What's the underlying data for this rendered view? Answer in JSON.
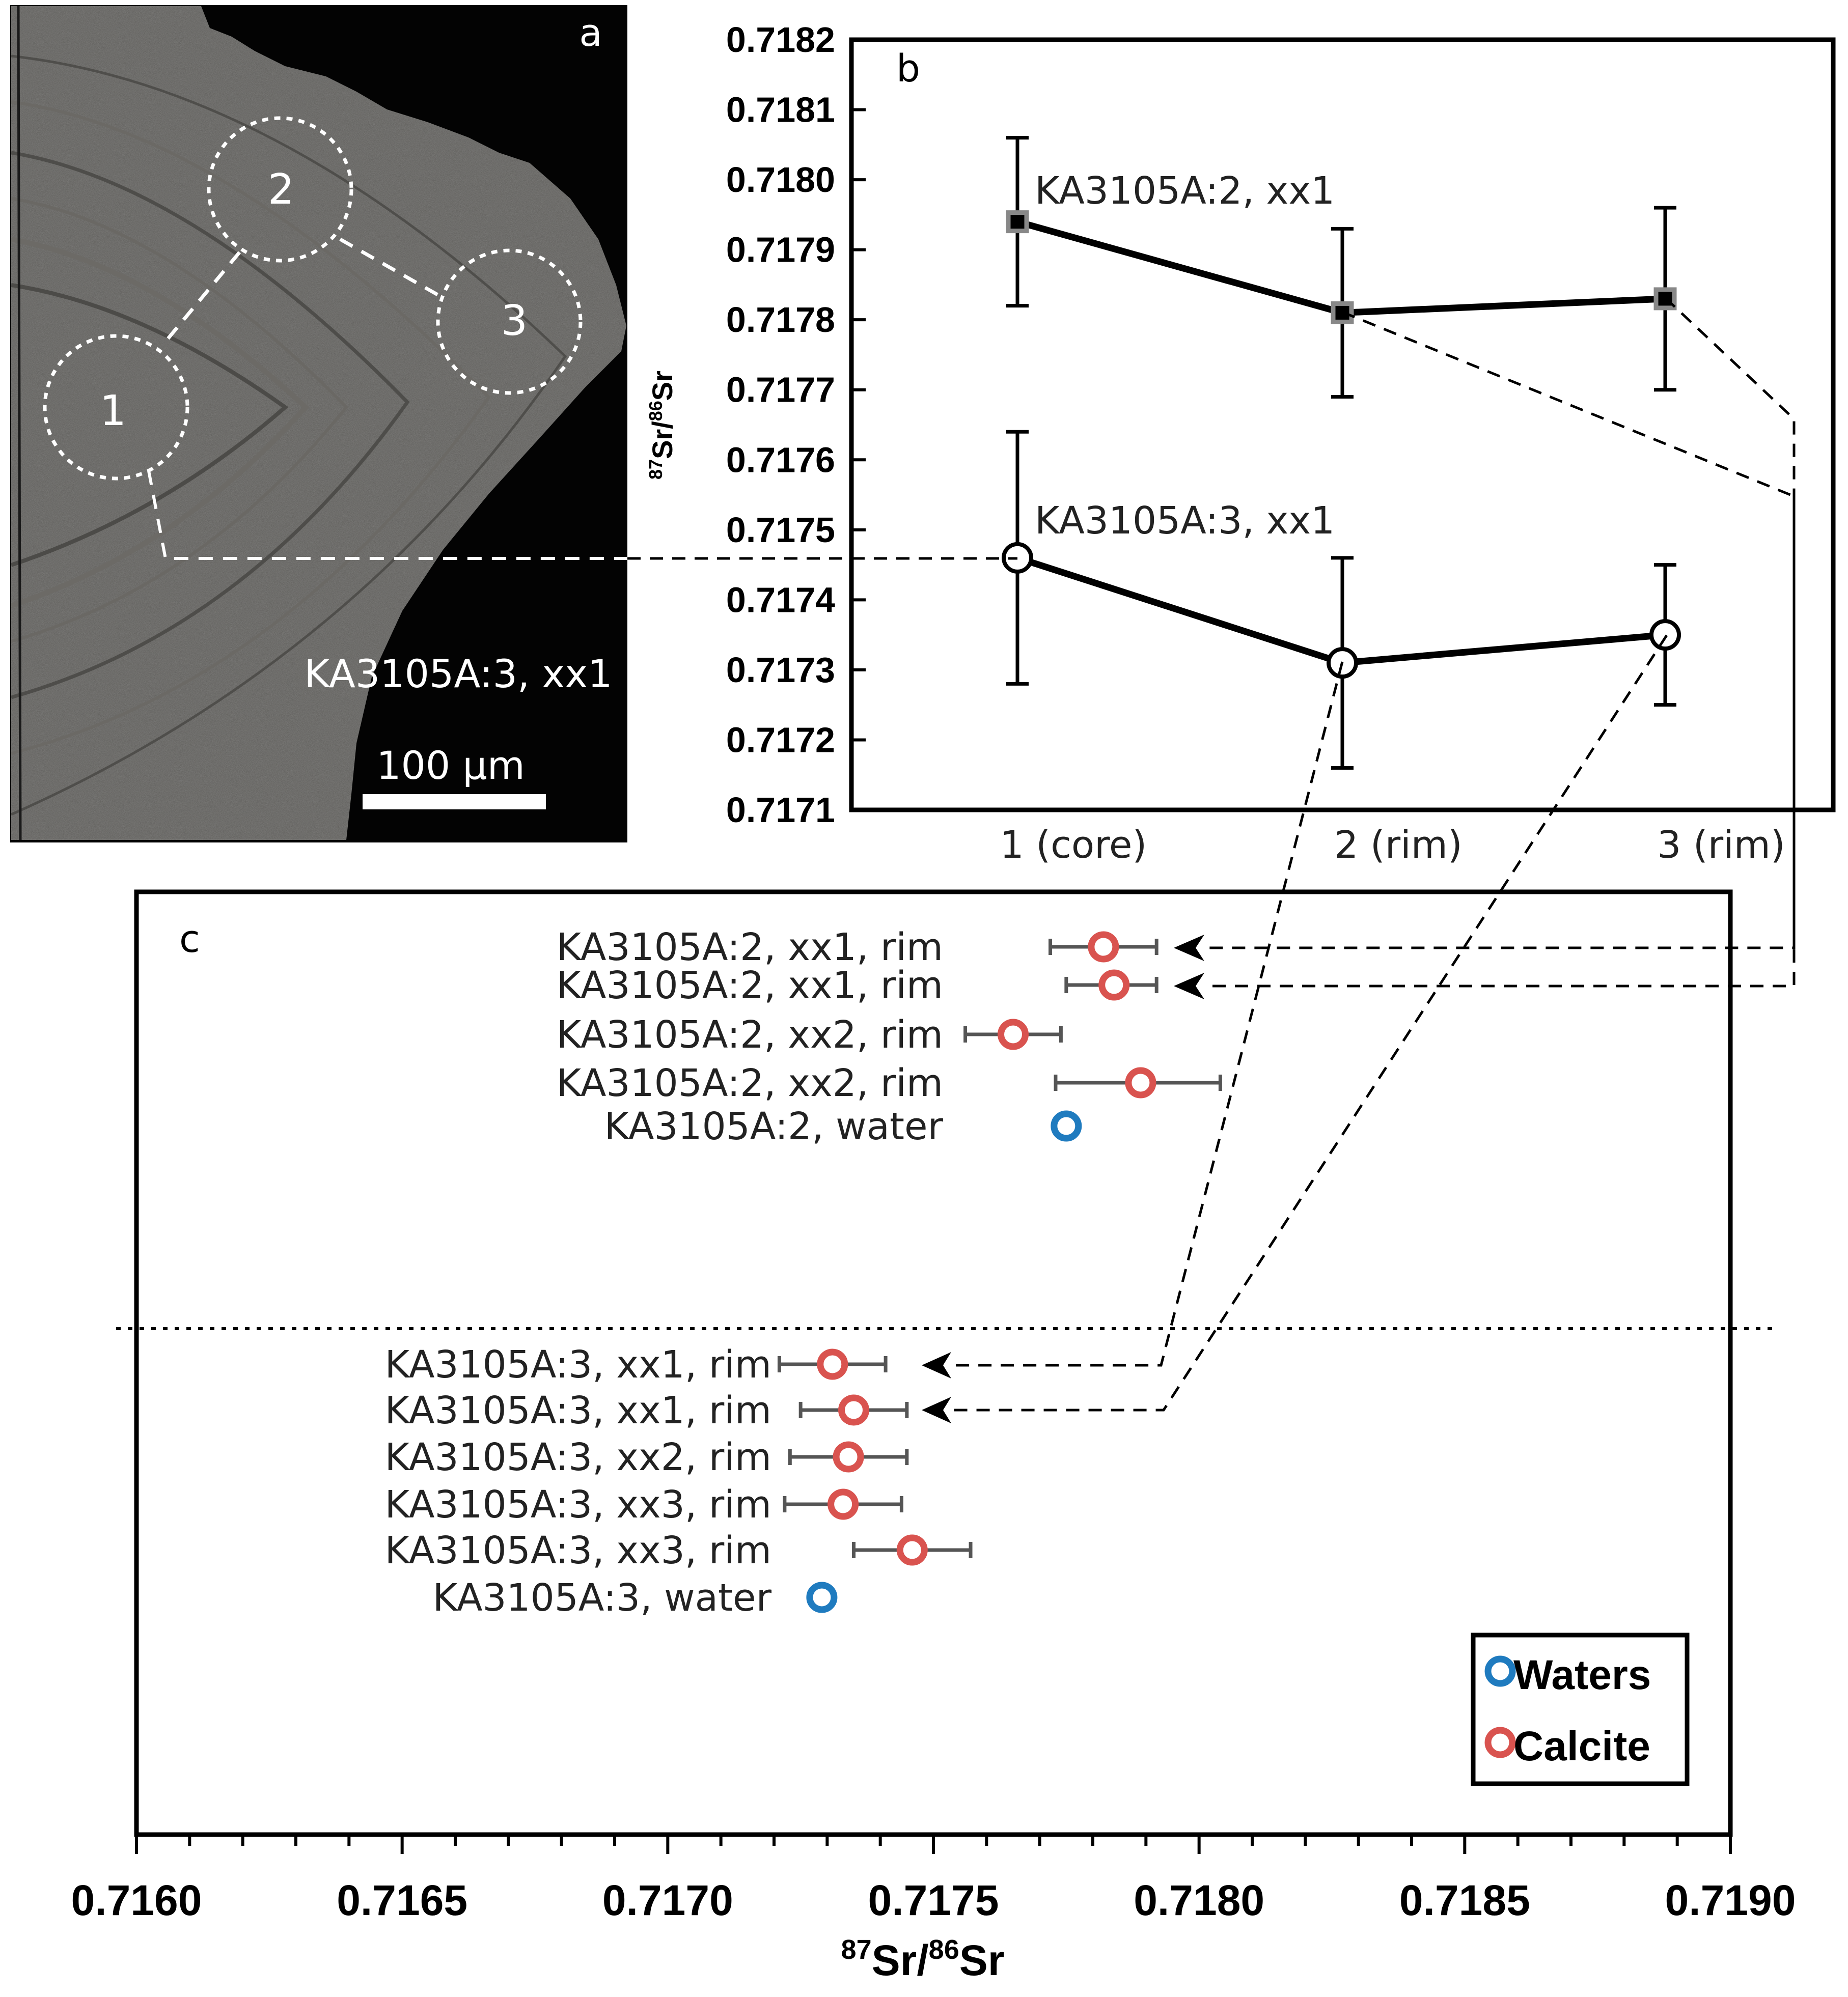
{
  "panel_a": {
    "letter": "a",
    "caption": "KA3105A:3, xx1",
    "scale_bar_label": "100 µm",
    "spots": [
      "1",
      "2",
      "3"
    ]
  },
  "chart_data": [
    {
      "panel": "b",
      "type": "line",
      "ylabel_sup1": "87",
      "ylabel_base1": "Sr/",
      "ylabel_sup2": "86",
      "ylabel_base2": "Sr",
      "ylim": [
        0.7171,
        0.7182
      ],
      "yticks": [
        "0.7171",
        "0.7172",
        "0.7173",
        "0.7174",
        "0.7175",
        "0.7176",
        "0.7177",
        "0.7178",
        "0.7179",
        "0.7180",
        "0.7181",
        "0.7182"
      ],
      "categories": [
        "1 (core)",
        "2 (rim)",
        "3 (rim)"
      ],
      "series": [
        {
          "name": "KA3105A:2, xx1",
          "marker": "square",
          "values": [
            0.71794,
            0.71781,
            0.71783
          ],
          "err_lo": [
            0.71782,
            0.71769,
            0.7177
          ],
          "err_hi": [
            0.71806,
            0.71793,
            0.71796
          ]
        },
        {
          "name": "KA3105A:3, xx1",
          "marker": "circle",
          "values": [
            0.71746,
            0.71731,
            0.71735
          ],
          "err_lo": [
            0.71728,
            0.71716,
            0.71725
          ],
          "err_hi": [
            0.71764,
            0.71746,
            0.71745
          ]
        }
      ]
    },
    {
      "panel": "c",
      "type": "scatter",
      "xlabel_sup1": "87",
      "xlabel_base1": "Sr/",
      "xlabel_sup2": "86",
      "xlabel_base2": "Sr",
      "xlim": [
        0.716,
        0.719
      ],
      "xticks": [
        "0.7160",
        "0.7165",
        "0.7170",
        "0.7175",
        "0.7180",
        "0.7185",
        "0.7190"
      ],
      "legend": [
        {
          "label": "Waters",
          "color": "#1f7bbf"
        },
        {
          "label": "Calcite",
          "color": "#d9534f"
        }
      ],
      "points": [
        {
          "label": "KA3105A:2, xx1, rim",
          "type": "Calcite",
          "x": 0.71782,
          "lo": 0.71772,
          "hi": 0.71792
        },
        {
          "label": "KA3105A:2, xx1, rim",
          "type": "Calcite",
          "x": 0.71784,
          "lo": 0.71775,
          "hi": 0.71792
        },
        {
          "label": "KA3105A:2, xx2, rim",
          "type": "Calcite",
          "x": 0.71765,
          "lo": 0.71756,
          "hi": 0.71774
        },
        {
          "label": "KA3105A:2, xx2, rim",
          "type": "Calcite",
          "x": 0.71789,
          "lo": 0.71773,
          "hi": 0.71804
        },
        {
          "label": "KA3105A:2, water",
          "type": "Waters",
          "x": 0.71775
        },
        {
          "label": "KA3105A:3, xx1, rim",
          "type": "Calcite",
          "x": 0.71731,
          "lo": 0.71721,
          "hi": 0.71741
        },
        {
          "label": "KA3105A:3, xx1, rim",
          "type": "Calcite",
          "x": 0.71735,
          "lo": 0.71725,
          "hi": 0.71745
        },
        {
          "label": "KA3105A:3, xx2, rim",
          "type": "Calcite",
          "x": 0.71734,
          "lo": 0.71723,
          "hi": 0.71745
        },
        {
          "label": "KA3105A:3, xx3, rim",
          "type": "Calcite",
          "x": 0.71733,
          "lo": 0.71722,
          "hi": 0.71744
        },
        {
          "label": "KA3105A:3, xx3, rim",
          "type": "Calcite",
          "x": 0.71746,
          "lo": 0.71735,
          "hi": 0.71757
        },
        {
          "label": "KA3105A:3, water",
          "type": "Waters",
          "x": 0.71729
        }
      ]
    }
  ],
  "colors": {
    "calcite": "#d9534f",
    "waters": "#1f7bbf",
    "errorbar": "#555555"
  }
}
